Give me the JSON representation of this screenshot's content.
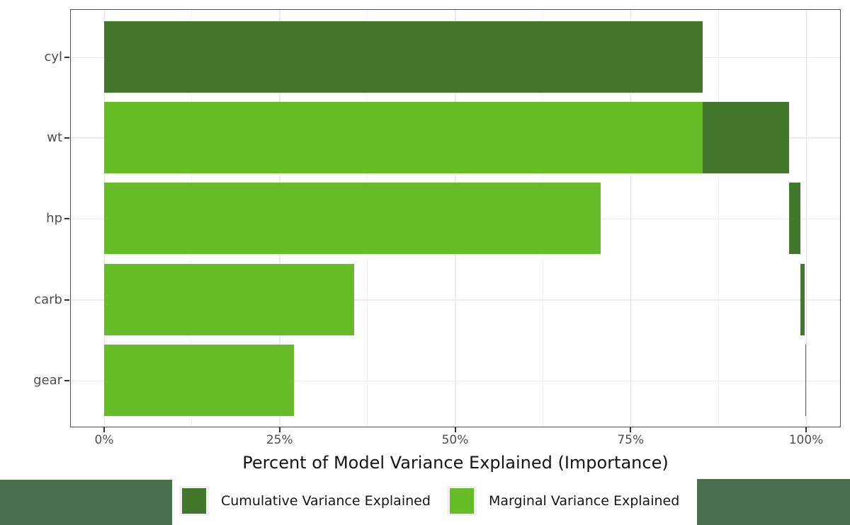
{
  "chart_data": {
    "type": "bar",
    "orientation": "horizontal",
    "title": "",
    "xlabel": "Percent of Model Variance Explained (Importance)",
    "ylabel": "",
    "xlim": [
      0,
      100
    ],
    "x_ticks": [
      {
        "value": 0,
        "label": "0%"
      },
      {
        "value": 25,
        "label": "25%"
      },
      {
        "value": 50,
        "label": "50%"
      },
      {
        "value": 75,
        "label": "75%"
      },
      {
        "value": 100,
        "label": "100%"
      }
    ],
    "x_minor_ticks": [
      12.5,
      37.5,
      62.5,
      87.5
    ],
    "grid": true,
    "legend_position": "bottom",
    "categories": [
      "cyl",
      "wt",
      "hp",
      "carb",
      "gear"
    ],
    "series": [
      {
        "name": "Cumulative Variance Explained",
        "color": "#43772C",
        "values": [
          85.3,
          97.6,
          99.2,
          99.9,
          100
        ]
      },
      {
        "name": "Marginal Variance Explained",
        "color": "#66BD27",
        "values": [
          null,
          85.3,
          70.8,
          35.7,
          27.1
        ]
      }
    ],
    "rows": [
      {
        "label": "cyl",
        "segments": [
          {
            "series": "cumulative",
            "from": 0,
            "to": 85.3
          }
        ]
      },
      {
        "label": "wt",
        "segments": [
          {
            "series": "marginal",
            "from": 0,
            "to": 85.3
          },
          {
            "series": "cumulative",
            "from": 85.3,
            "to": 97.6
          }
        ]
      },
      {
        "label": "hp",
        "segments": [
          {
            "series": "marginal",
            "from": 0,
            "to": 70.8
          },
          {
            "series": "cumulative",
            "from": 97.6,
            "to": 99.2
          }
        ]
      },
      {
        "label": "carb",
        "segments": [
          {
            "series": "marginal",
            "from": 0,
            "to": 35.7
          },
          {
            "series": "cumulative",
            "from": 99.2,
            "to": 99.9
          }
        ]
      },
      {
        "label": "gear",
        "segments": [
          {
            "series": "marginal",
            "from": 0,
            "to": 27.1
          },
          {
            "series": "cumulative",
            "from": 99.9,
            "to": 100
          }
        ]
      }
    ],
    "series_colors": {
      "cumulative": "#43772C",
      "marginal": "#66BD27"
    }
  },
  "legend": {
    "items": [
      {
        "label": "Cumulative Variance Explained",
        "color": "#43772C"
      },
      {
        "label": "Marginal Variance Explained",
        "color": "#66BD27"
      }
    ]
  },
  "decorations": {
    "left_block_color": "#49704F",
    "right_block_color": "#49704F"
  },
  "colors": {
    "panel_border": "#4f4f4f",
    "grid_major": "#ebebeb",
    "grid_minor": "#f1f1f1",
    "tick": "#333333",
    "tick_label": "#4d4d4d",
    "axis_title": "#141414"
  }
}
